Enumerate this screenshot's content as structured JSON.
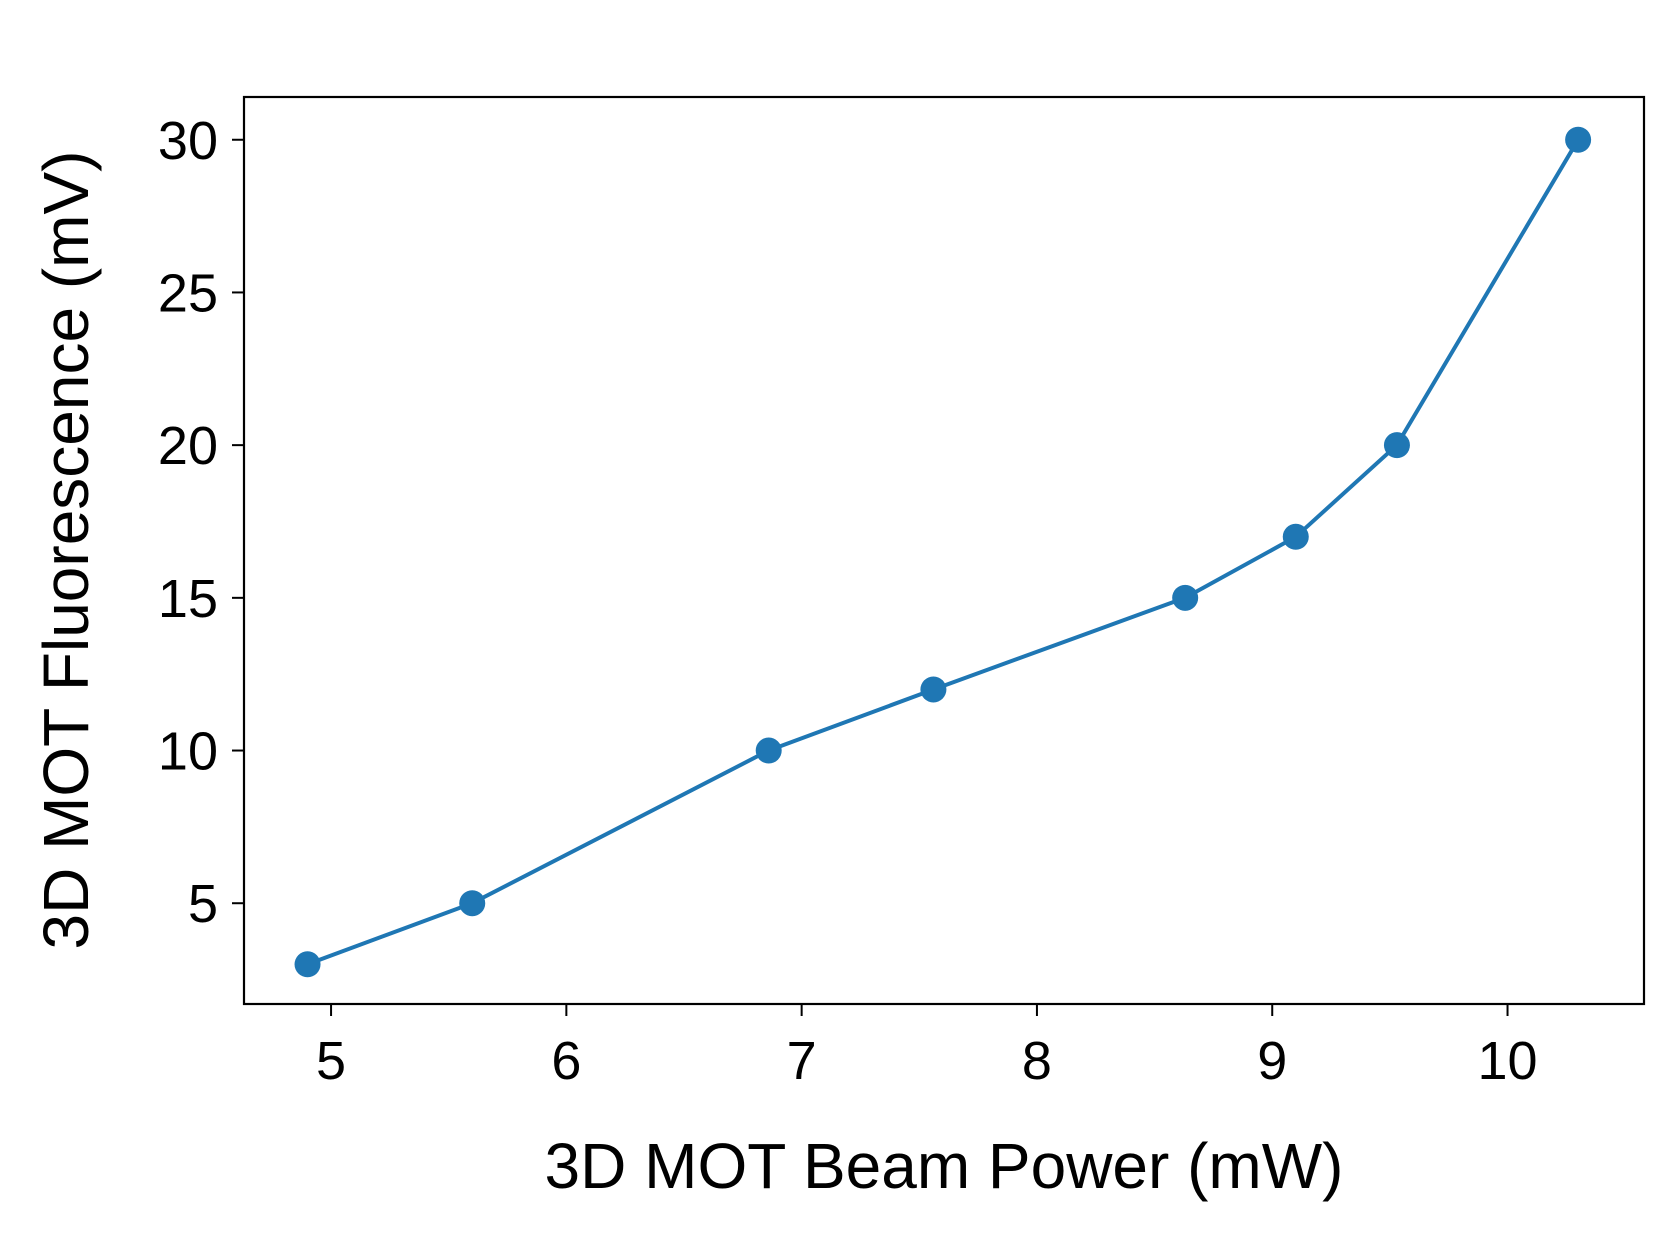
{
  "chart_data": {
    "type": "line",
    "title": "",
    "xlabel": "3D MOT Beam Power (mW)",
    "ylabel": "3D MOT Fluorescence (mV)",
    "xlim": [
      4.63,
      10.58
    ],
    "ylim": [
      1.7,
      31.4
    ],
    "xticks": [
      5,
      6,
      7,
      8,
      9,
      10
    ],
    "xtick_labels": [
      "5",
      "6",
      "7",
      "8",
      "9",
      "10"
    ],
    "yticks": [
      5,
      10,
      15,
      20,
      25,
      30
    ],
    "ytick_labels": [
      "5",
      "10",
      "15",
      "20",
      "25",
      "30"
    ],
    "grid": false,
    "legend": "none",
    "series": [
      {
        "color": "#1f77b4",
        "marker": "circle",
        "x": [
          4.9,
          5.6,
          6.86,
          7.56,
          8.63,
          9.1,
          9.53,
          10.3
        ],
        "y": [
          3,
          5,
          10,
          12,
          15,
          17,
          20,
          30
        ]
      }
    ]
  }
}
